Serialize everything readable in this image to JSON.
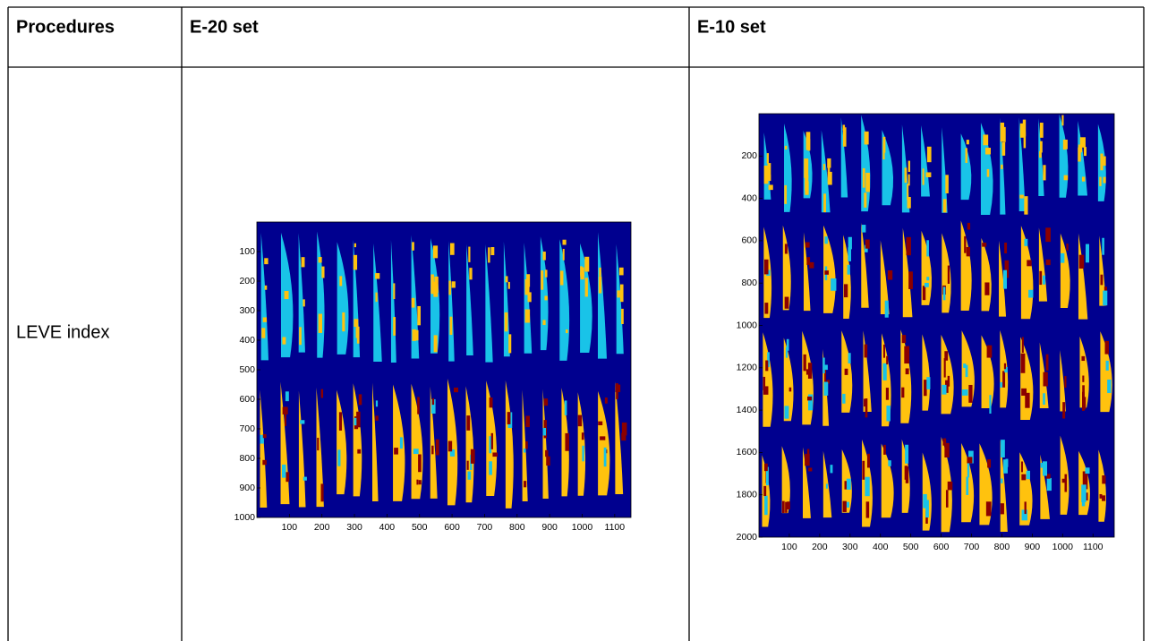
{
  "table": {
    "header": [
      "Procedures",
      "E-20 set",
      "E-10 set"
    ],
    "rows": [
      [
        "LEVE index"
      ]
    ]
  },
  "figures": [
    {
      "xlim": [
        0,
        1150
      ],
      "ylim": [
        0,
        1000
      ],
      "xticks": [
        100,
        200,
        300,
        400,
        500,
        600,
        700,
        800,
        900,
        1000,
        1100
      ],
      "yticks": [
        100,
        200,
        300,
        400,
        500,
        600,
        700,
        800,
        900,
        1000
      ]
    },
    {
      "xlim": [
        0,
        1170
      ],
      "ylim": [
        0,
        2000
      ],
      "xticks": [
        100,
        200,
        300,
        400,
        500,
        600,
        700,
        800,
        900,
        1000,
        1100
      ],
      "yticks": [
        200,
        400,
        600,
        800,
        1000,
        1200,
        1400,
        1600,
        1800,
        2000
      ]
    }
  ]
}
